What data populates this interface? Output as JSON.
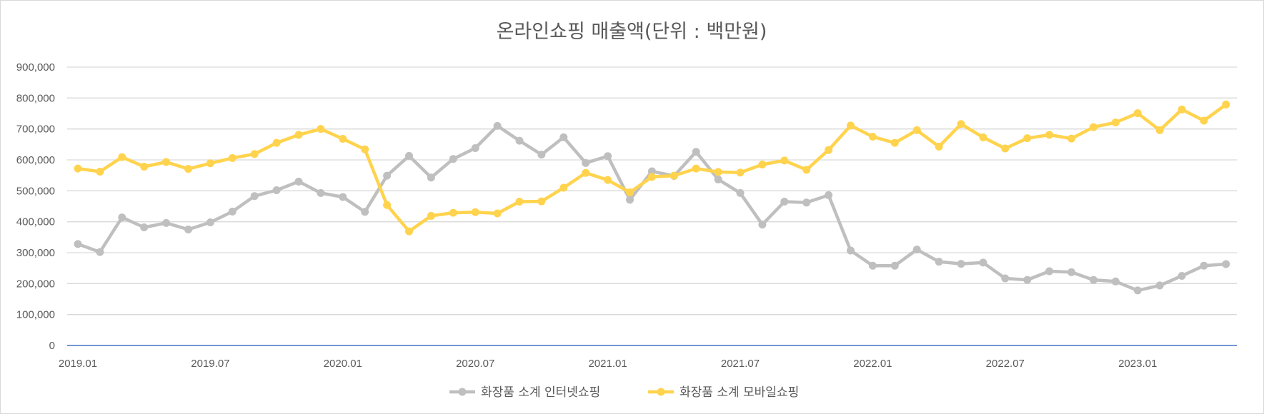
{
  "chart_data": {
    "type": "line",
    "title": "온라인쇼핑 매출액(단위 : 백만원)",
    "xlabel": "",
    "ylabel": "",
    "ylim": [
      0,
      900000
    ],
    "y_ticks": [
      "0",
      "100,000",
      "200,000",
      "300,000",
      "400,000",
      "500,000",
      "600,000",
      "700,000",
      "800,000",
      "900,000"
    ],
    "x": [
      "2019.01",
      "2019.02",
      "2019.03",
      "2019.04",
      "2019.05",
      "2019.06",
      "2019.07",
      "2019.08",
      "2019.09",
      "2019.10",
      "2019.11",
      "2019.12",
      "2020.01",
      "2020.02",
      "2020.03",
      "2020.04",
      "2020.05",
      "2020.06",
      "2020.07",
      "2020.08",
      "2020.09",
      "2020.10",
      "2020.11",
      "2020.12",
      "2021.01",
      "2021.02",
      "2021.03",
      "2021.04",
      "2021.05",
      "2021.06",
      "2021.07",
      "2021.08",
      "2021.09",
      "2021.10",
      "2021.11",
      "2021.12",
      "2022.01",
      "2022.02",
      "2022.03",
      "2022.04",
      "2022.05",
      "2022.06",
      "2022.07",
      "2022.08",
      "2022.09",
      "2022.10",
      "2022.11",
      "2022.12",
      "2023.01",
      "2023.02",
      "2023.03",
      "2023.04",
      "2023.05"
    ],
    "x_tick_labels": [
      {
        "index": 0,
        "label": "2019.01"
      },
      {
        "index": 6,
        "label": "2019.07"
      },
      {
        "index": 12,
        "label": "2020.01"
      },
      {
        "index": 18,
        "label": "2020.07"
      },
      {
        "index": 24,
        "label": "2021.01"
      },
      {
        "index": 30,
        "label": "2021.07"
      },
      {
        "index": 36,
        "label": "2022.01"
      },
      {
        "index": 42,
        "label": "2022.07"
      },
      {
        "index": 48,
        "label": "2023.01"
      }
    ],
    "grid": true,
    "legend_position": "bottom",
    "series": [
      {
        "name": "화장품 소계 인터넷쇼핑",
        "color": "#bfbfbf",
        "values": [
          328000,
          302000,
          414000,
          382000,
          396000,
          375000,
          398000,
          433000,
          483000,
          502000,
          530000,
          493000,
          480000,
          432000,
          549000,
          613000,
          543000,
          603000,
          638000,
          710000,
          662000,
          617000,
          673000,
          590000,
          612000,
          471000,
          563000,
          548000,
          626000,
          537000,
          493000,
          391000,
          465000,
          462000,
          486000,
          307000,
          258000,
          258000,
          310000,
          271000,
          264000,
          268000,
          217000,
          212000,
          240000,
          237000,
          212000,
          207000,
          178000,
          194000,
          225000,
          258000,
          263000
        ]
      },
      {
        "name": "화장품 소계 모바일쇼핑",
        "color": "#ffd34d",
        "values": [
          572000,
          562000,
          609000,
          578000,
          593000,
          571000,
          589000,
          606000,
          619000,
          655000,
          681000,
          700000,
          668000,
          634000,
          454000,
          369000,
          419000,
          429000,
          431000,
          427000,
          465000,
          466000,
          510000,
          558000,
          535000,
          495000,
          545000,
          549000,
          572000,
          561000,
          559000,
          585000,
          598000,
          568000,
          632000,
          711000,
          675000,
          655000,
          696000,
          643000,
          716000,
          673000,
          637000,
          670000,
          681000,
          669000,
          706000,
          721000,
          751000,
          696000,
          763000,
          727000,
          779000
        ]
      }
    ]
  }
}
